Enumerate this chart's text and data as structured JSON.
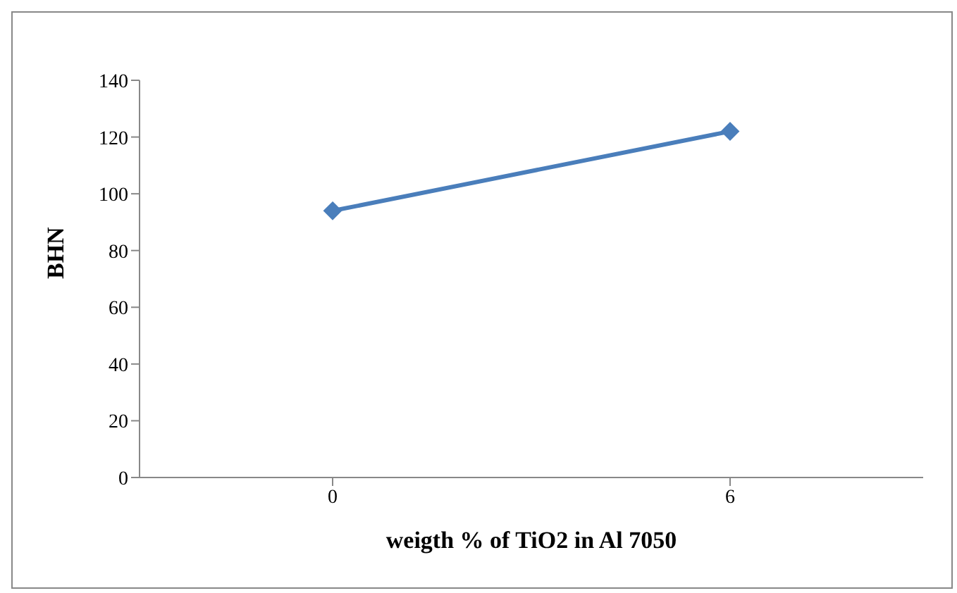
{
  "chart_data": {
    "type": "line",
    "xlabel": "weigth % of TiO2 in Al 7050",
    "ylabel": "BHN",
    "categories": [
      "0",
      "6"
    ],
    "series": [
      {
        "color": "#4a7ebb",
        "values": [
          94,
          122
        ]
      }
    ],
    "ylim": [
      0,
      140
    ],
    "yticks": [
      0,
      20,
      40,
      60,
      80,
      100,
      120,
      140
    ],
    "grid": false,
    "legend": false,
    "marker": "diamond",
    "line_style": "solid"
  }
}
